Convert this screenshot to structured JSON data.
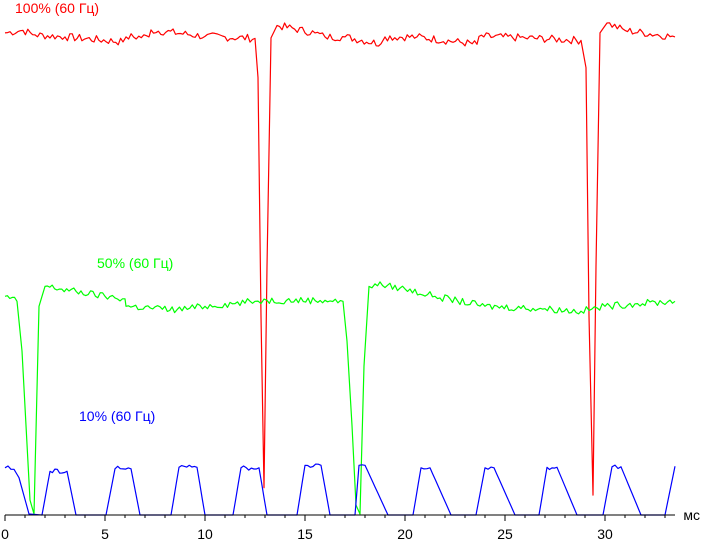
{
  "chart_data": {
    "type": "line",
    "xlabel": "мс",
    "xlim": [
      0,
      33.5
    ],
    "ylim": [
      0,
      1
    ],
    "x_ticks": [
      {
        "value": 0,
        "label": "0"
      },
      {
        "value": 5,
        "label": "5"
      },
      {
        "value": 10,
        "label": "10"
      },
      {
        "value": 15,
        "label": "15"
      },
      {
        "value": 20,
        "label": "20"
      },
      {
        "value": 25,
        "label": "25"
      },
      {
        "value": 30,
        "label": "30"
      }
    ],
    "grid": false,
    "legend": "inline labels",
    "series": [
      {
        "name": "100% (60 Гц)",
        "color": "#ff0000",
        "x": [
          0,
          0.9,
          1.5,
          3,
          5.9,
          6.05,
          7.2,
          7.3,
          10,
          12.5,
          12.65,
          12.8,
          12.95,
          13.1,
          13.3,
          13.6,
          15.5,
          16,
          17,
          18.8,
          19,
          20.6,
          23.6,
          23.7,
          26,
          28.8,
          29.05,
          29.2,
          29.4,
          29.55,
          29.75,
          30.1,
          31,
          33.5
        ],
        "y": [
          0.97,
          0.975,
          0.966,
          0.962,
          0.952,
          0.962,
          0.962,
          0.976,
          0.963,
          0.959,
          0.88,
          0.4,
          0.055,
          0.5,
          0.96,
          0.985,
          0.97,
          0.962,
          0.962,
          0.948,
          0.962,
          0.962,
          0.947,
          0.963,
          0.96,
          0.955,
          0.9,
          0.4,
          0.04,
          0.5,
          0.97,
          0.99,
          0.975,
          0.962
        ]
      },
      {
        "name": "50% (60 Гц)",
        "color": "#00ff00",
        "x": [
          0,
          0.6,
          0.85,
          1.05,
          1.25,
          1.45,
          1.7,
          2,
          5,
          6,
          6.05,
          8.6,
          10,
          12.5,
          13.1,
          16,
          16.9,
          17.1,
          17.35,
          17.55,
          17.75,
          17.95,
          18.2,
          18.5,
          20,
          21.5,
          24,
          27,
          28.8,
          30,
          31.5,
          33.5
        ],
        "y": [
          0.44,
          0.43,
          0.33,
          0.18,
          0.03,
          0.002,
          0.42,
          0.46,
          0.44,
          0.435,
          0.42,
          0.413,
          0.42,
          0.43,
          0.432,
          0.432,
          0.43,
          0.35,
          0.18,
          0.02,
          0.002,
          0.3,
          0.46,
          0.465,
          0.455,
          0.44,
          0.42,
          0.415,
          0.41,
          0.42,
          0.425,
          0.43
        ]
      },
      {
        "name": "10% (60 Гц)",
        "color": "#0000ff",
        "x": [
          0,
          0.45,
          0.7,
          1.2,
          1.85,
          2.25,
          3.1,
          3.55,
          4.05,
          5.05,
          5.5,
          6.3,
          6.75,
          7.2,
          8.3,
          8.7,
          9.6,
          10,
          10.4,
          11.4,
          11.8,
          12.7,
          13.1,
          13.55,
          14.6,
          15,
          15.8,
          16.25,
          16.65,
          17.5,
          17.7,
          18,
          19.15,
          19.6,
          20.4,
          20.8,
          21.25,
          22.3,
          22.7,
          23.55,
          24.0,
          24.45,
          25.5,
          25.9,
          26.7,
          27.1,
          27.6,
          28.6,
          29.0,
          29.9,
          30.35,
          30.8,
          31.8,
          32.2,
          33.0,
          33.5
        ],
        "y": [
          0.095,
          0.092,
          0.075,
          0.002,
          0.0,
          0.088,
          0.088,
          0.0,
          0.0,
          0.0,
          0.093,
          0.093,
          0.0,
          0.0,
          0.0,
          0.096,
          0.096,
          0.0,
          0.0,
          0.0,
          0.095,
          0.095,
          0.0,
          0.0,
          0.0,
          0.1,
          0.1,
          0.0,
          0.0,
          0.0,
          0.1,
          0.1,
          0.0,
          0.0,
          0.0,
          0.095,
          0.095,
          0.0,
          0.0,
          0.0,
          0.095,
          0.095,
          0.0,
          0.0,
          0.0,
          0.096,
          0.096,
          0.0,
          0.0,
          0.0,
          0.097,
          0.097,
          0.0,
          0.0,
          0.0,
          0.098
        ]
      }
    ]
  }
}
